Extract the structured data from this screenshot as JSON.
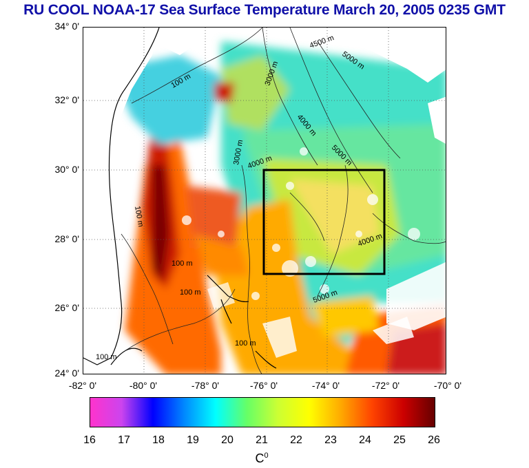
{
  "title": "RU COOL  NOAA-17 Sea Surface Temperature March 20, 2005 0235 GMT",
  "lat_labels": [
    "34° 0'",
    "32° 0'",
    "30° 0'",
    "28° 0'",
    "26° 0'",
    "24° 0'"
  ],
  "lon_labels": [
    "-82° 0'",
    "-80° 0'",
    "-78° 0'",
    "-76° 0'",
    "-74° 0'",
    "-72° 0'",
    "-70° 0'"
  ],
  "contour_labels": {
    "c1": "100 m",
    "c2": "3000 m",
    "c3": "4500 m",
    "c4": "5000 m",
    "c5": "4000 m",
    "c6": "5000 m",
    "c7": "3000 m",
    "c8": "4000 m",
    "c9": "100 m",
    "c10": "100 m",
    "c11": "100 m",
    "c12": "5000 m",
    "c13": "100 m",
    "c14": "100 m",
    "c15": "4000 m"
  },
  "study_box": {
    "lon_min": -76,
    "lon_max": -72.5,
    "lat_min": 27,
    "lat_max": 30
  },
  "colorbar": {
    "labels": [
      "16",
      "17",
      "18",
      "19",
      "20",
      "21",
      "22",
      "23",
      "24",
      "25",
      "26"
    ],
    "units": "C",
    "units_sup": "0",
    "colors": [
      "#ff33cc",
      "#cc44ee",
      "#0000ff",
      "#0088ff",
      "#00ffff",
      "#66ff66",
      "#ccff33",
      "#ffff00",
      "#ffaa00",
      "#ff4400",
      "#cc0000",
      "#660000"
    ]
  }
}
